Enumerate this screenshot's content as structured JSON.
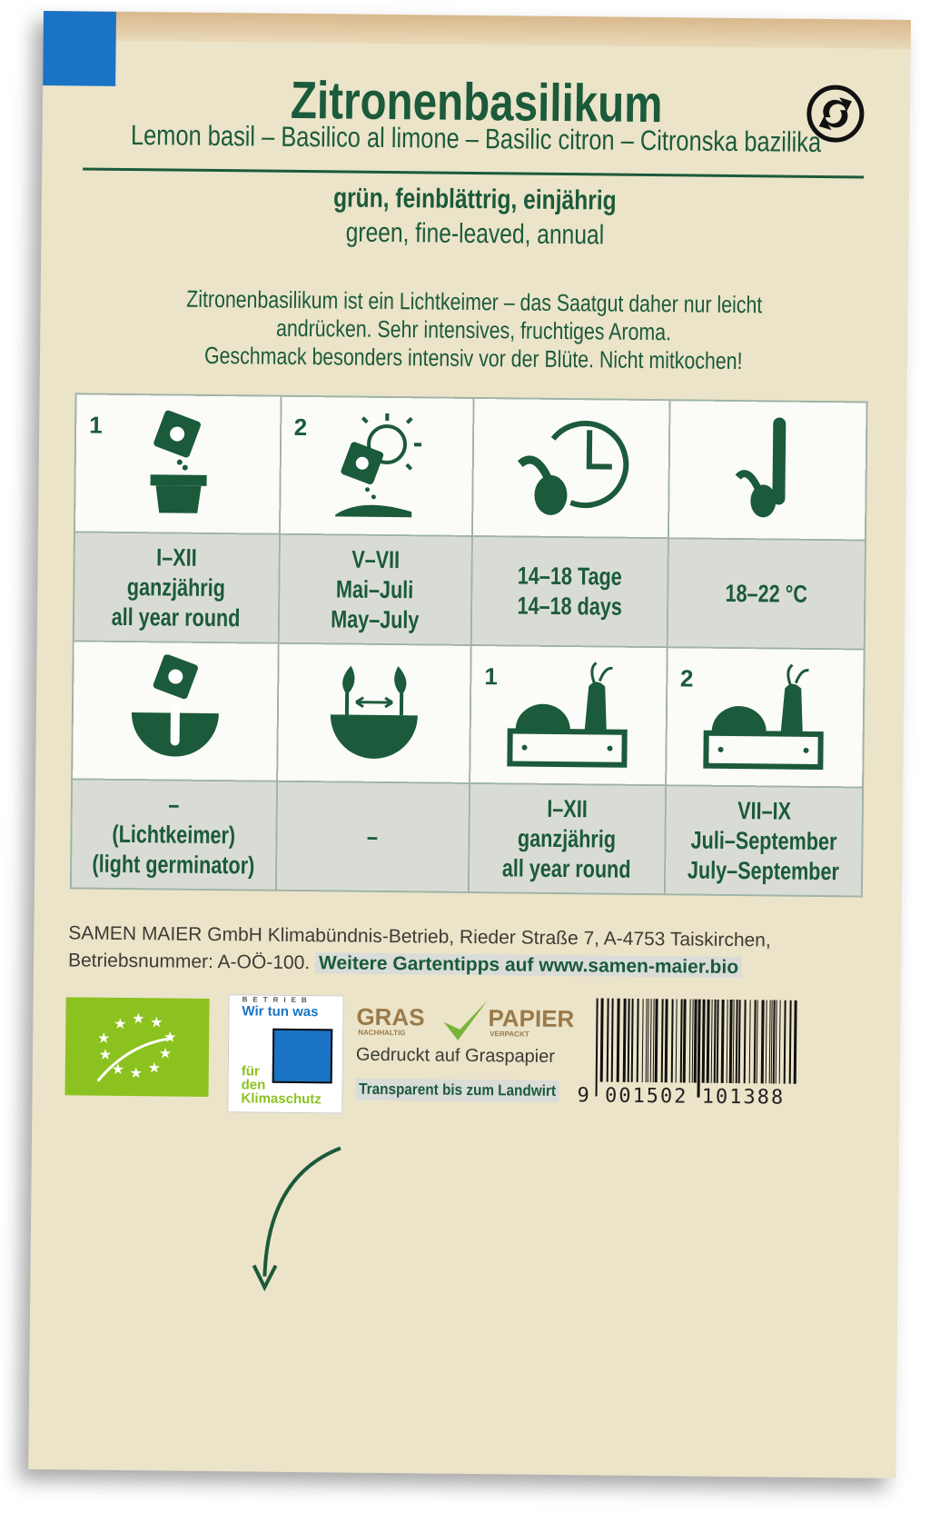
{
  "packet": {
    "title": "Zitronenbasilikum",
    "subtitle": "Lemon basil – Basilico al limone – Basilic citron – Citronska bazilika",
    "properties_de": "grün, feinblättrig, einjährig",
    "properties_en": "green, fine-leaved, annual",
    "description": [
      "Zitronenbasilikum ist ein Lichtkeimer – das Saatgut daher nur leicht",
      "andrücken. Sehr intensives, fruchtiges Aroma.",
      "Geschmack besonders intensiv vor der Blüte. Nicht mitkochen!"
    ]
  },
  "grid": {
    "row1": [
      {
        "icon": "sowing-pot-icon",
        "num": "1",
        "lines": [
          "I–XII",
          "ganzjährig",
          "all year round"
        ]
      },
      {
        "icon": "sowing-outdoor-sun-icon",
        "num": "2",
        "lines": [
          "V–VII",
          "Mai–Juli",
          "May–July"
        ]
      },
      {
        "icon": "germination-time-clock-icon",
        "lines": [
          "14–18 Tage",
          "14–18 days"
        ]
      },
      {
        "icon": "germination-temperature-thermometer-icon",
        "lines": [
          "18–22 °C"
        ]
      }
    ],
    "row2": [
      {
        "icon": "sowing-depth-icon",
        "lines": [
          "–",
          "(Lichtkeimer)",
          "(light germinator)"
        ]
      },
      {
        "icon": "plant-spacing-icon",
        "lines": [
          "–"
        ]
      },
      {
        "icon": "harvest-crate-icon",
        "num": "1",
        "lines": [
          "I–XII",
          "ganzjährig",
          "all year round"
        ]
      },
      {
        "icon": "harvest-crate-icon",
        "num": "2",
        "lines": [
          "VII–IX",
          "Juli–September",
          "July–September"
        ]
      }
    ]
  },
  "footer": {
    "address": "SAMEN MAIER GmbH Klimabündnis-Betrieb, Rieder Straße 7, A-4753 Taiskirchen,",
    "operator_no": "Betriebsnummer: A-OÖ-100.",
    "tips": "Weitere Gartentipps auf www.samen-maier.bio",
    "kb_logo": [
      "BETRIEB",
      "Wir tun was",
      "für",
      "den",
      "Klimaschutz"
    ],
    "gras_logo": {
      "gras": "GRAS",
      "nachhaltig": "NACHHALTIG",
      "papier": "PAPIER",
      "verpackt": "VERPACKT"
    },
    "printed_on": "Gedruckt auf Graspapier",
    "transparent": "Transparent bis zum Landwirt",
    "barcode": "9 001502 101388"
  },
  "colors": {
    "brand_green": "#1b5a3a",
    "paper": "#ebe4c9",
    "eu_organic": "#8cc21f",
    "tab_blue": "#1a73c4"
  }
}
